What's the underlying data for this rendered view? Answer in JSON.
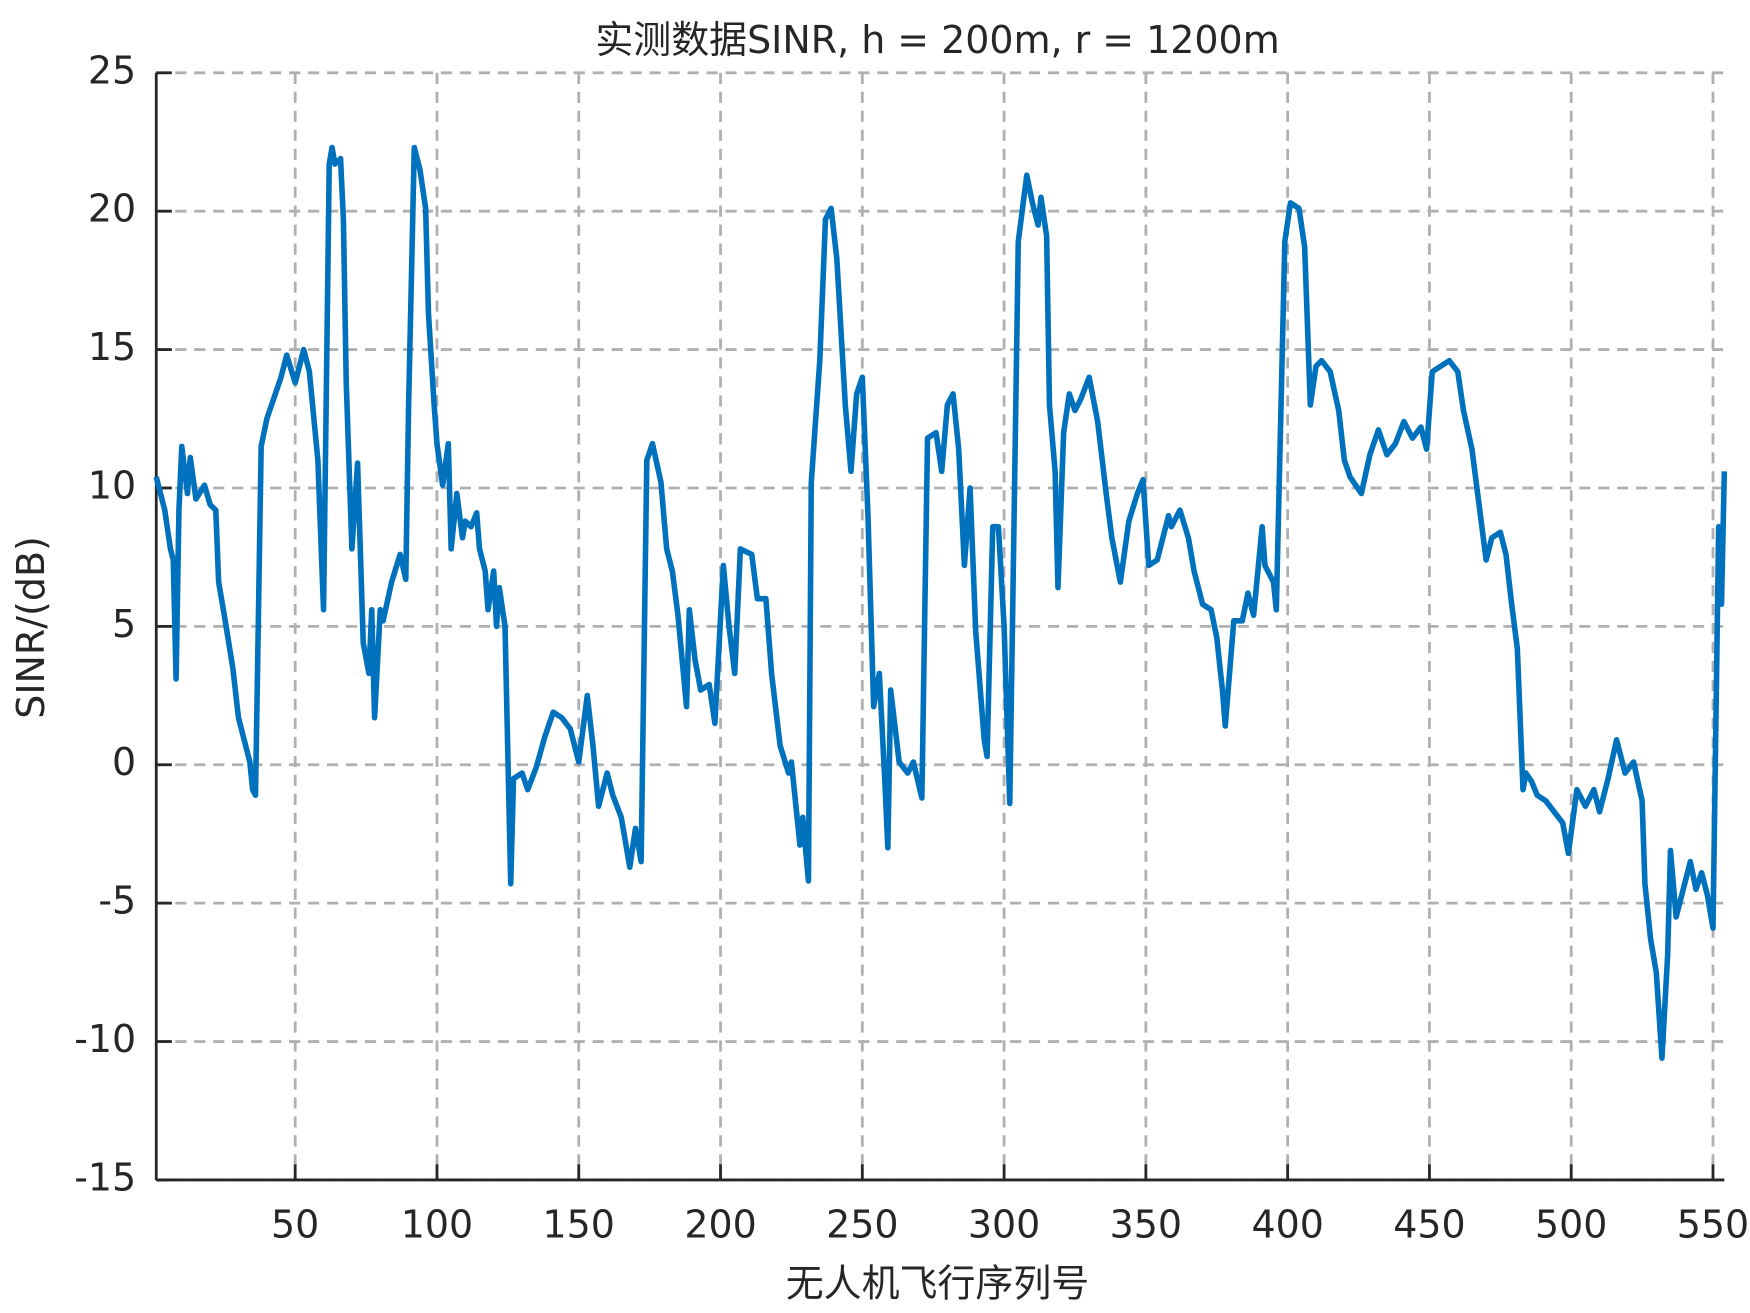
{
  "chart_data": {
    "type": "line",
    "title": "实测数据SINR, h = 200m, r = 1200m",
    "xlabel": "无人机飞行序列号",
    "ylabel": "SINR/(dB)",
    "xlim": [
      1,
      554
    ],
    "ylim": [
      -15,
      25
    ],
    "xticks": [
      50,
      100,
      150,
      200,
      250,
      300,
      350,
      400,
      450,
      500,
      550
    ],
    "yticks": [
      -15,
      -10,
      -5,
      0,
      5,
      10,
      15,
      20,
      25
    ],
    "grid": true,
    "x": [
      1,
      4,
      6,
      7,
      8,
      9,
      10,
      12,
      13,
      15,
      18,
      20,
      22,
      23,
      25,
      28,
      30,
      32,
      34,
      35,
      36,
      38,
      40,
      43,
      45,
      47,
      50,
      53,
      55,
      58,
      60,
      62,
      63,
      64,
      66,
      67,
      68,
      70,
      72,
      74,
      76,
      77,
      78,
      80,
      81,
      84,
      87,
      89,
      90,
      92,
      94,
      96,
      97,
      99,
      100,
      102,
      104,
      105,
      107,
      109,
      110,
      112,
      114,
      115,
      117,
      118,
      120,
      121,
      122,
      124,
      126,
      127,
      130,
      132,
      135,
      138,
      141,
      144,
      147,
      150,
      153,
      155,
      157,
      160,
      162,
      165,
      168,
      170,
      172,
      174,
      176,
      179,
      181,
      183,
      185,
      188,
      189,
      191,
      193,
      196,
      198,
      201,
      203,
      205,
      207,
      211,
      213,
      216,
      218,
      221,
      224,
      225,
      228,
      229,
      231,
      232,
      235,
      237,
      239,
      241,
      244,
      246,
      248,
      250,
      252,
      254,
      256,
      258,
      259,
      260,
      263,
      266,
      268,
      271,
      273,
      276,
      278,
      280,
      282,
      284,
      286,
      288,
      290,
      293,
      294,
      296,
      298,
      300,
      302,
      305,
      308,
      310,
      312,
      313,
      315,
      316,
      318,
      319,
      321,
      323,
      325,
      327,
      330,
      333,
      336,
      338,
      341,
      344,
      347,
      349,
      351,
      354,
      356,
      358,
      359,
      362,
      365,
      367,
      370,
      373,
      375,
      377,
      378,
      381,
      384,
      386,
      388,
      391,
      392,
      395,
      396,
      399,
      401,
      404,
      406,
      408,
      410,
      412,
      415,
      418,
      420,
      422,
      426,
      429,
      432,
      435,
      438,
      441,
      444,
      447,
      449,
      451,
      454,
      457,
      460,
      462,
      465,
      467,
      470,
      472,
      475,
      477,
      479,
      481,
      483,
      484,
      486,
      488,
      491,
      494,
      497,
      499,
      502,
      505,
      508,
      510,
      513,
      516,
      519,
      522,
      525,
      526,
      528,
      530,
      532,
      534,
      535,
      537,
      540,
      542,
      544,
      546,
      548,
      550,
      552,
      553,
      554
    ],
    "series": [
      {
        "name": "SINR",
        "color": "#0072BD",
        "values": [
          10.4,
          9.2,
          7.8,
          7.4,
          3.1,
          9.2,
          11.5,
          9.8,
          11.1,
          9.6,
          10.1,
          9.4,
          9.2,
          6.6,
          5.4,
          3.5,
          1.7,
          0.9,
          0.1,
          -0.9,
          -1.1,
          11.5,
          12.5,
          13.4,
          14,
          14.8,
          13.8,
          15,
          14.2,
          11,
          5.6,
          21.7,
          22.3,
          21.7,
          21.9,
          19.7,
          13.8,
          7.8,
          10.9,
          4.4,
          3.3,
          5.6,
          1.7,
          5.6,
          5.2,
          6.6,
          7.6,
          6.7,
          13,
          22.3,
          21.5,
          20.1,
          16.3,
          13,
          11.6,
          10.1,
          11.6,
          7.8,
          9.8,
          8.2,
          8.8,
          8.6,
          9.1,
          7.8,
          7,
          5.6,
          7,
          5,
          6.4,
          5,
          -4.3,
          -0.5,
          -0.3,
          -0.9,
          -0.1,
          1,
          1.9,
          1.7,
          1.3,
          0.1,
          2.5,
          0.7,
          -1.5,
          -0.3,
          -1.1,
          -1.9,
          -3.7,
          -2.3,
          -3.5,
          11,
          11.6,
          10.2,
          7.8,
          7,
          5.4,
          2.1,
          5.6,
          3.8,
          2.7,
          2.9,
          1.5,
          7.2,
          5,
          3.3,
          7.8,
          7.6,
          6,
          6,
          3.3,
          0.7,
          -0.3,
          0.1,
          -2.9,
          -1.9,
          -4.2,
          10.2,
          14.6,
          19.7,
          20.1,
          18.3,
          13,
          10.6,
          13.4,
          14,
          9,
          2.1,
          3.3,
          -0.7,
          -3,
          2.7,
          0.1,
          -0.3,
          0.1,
          -1.2,
          11.8,
          12,
          10.6,
          13,
          13.4,
          11.4,
          7.2,
          10,
          4.8,
          0.9,
          0.3,
          8.6,
          8.6,
          5,
          -1.4,
          18.9,
          21.3,
          20.3,
          19.5,
          20.5,
          19.1,
          13,
          10.6,
          6.4,
          12,
          13.4,
          12.8,
          13.2,
          14,
          12.4,
          9.8,
          8.2,
          6.6,
          8.8,
          9.8,
          10.3,
          7.2,
          7.4,
          8.2,
          9,
          8.6,
          9.2,
          8.2,
          7,
          5.8,
          5.6,
          4.6,
          2.7,
          1.4,
          5.2,
          5.2,
          6.2,
          5.4,
          8.6,
          7.2,
          6.6,
          5.6,
          18.9,
          20.3,
          20.1,
          18.7,
          13,
          14.4,
          14.6,
          14.2,
          12.8,
          11,
          10.4,
          9.8,
          11.2,
          12.1,
          11.2,
          11.6,
          12.4,
          11.8,
          12.2,
          11.4,
          14.2,
          14.4,
          14.6,
          14.2,
          12.8,
          11.4,
          9.8,
          7.4,
          8.2,
          8.4,
          7.6,
          5.8,
          4.2,
          -0.9,
          -0.3,
          -0.6,
          -1.1,
          -1.3,
          -1.7,
          -2.1,
          -3.2,
          -0.9,
          -1.5,
          -0.9,
          -1.7,
          -0.5,
          0.9,
          -0.3,
          0.1,
          -1.3,
          -4.3,
          -6.3,
          -7.5,
          -10.6,
          -6.9,
          -3.1,
          -5.5,
          -4.3,
          -3.5,
          -4.5,
          -3.9,
          -4.7,
          -5.9,
          8.6,
          5.8,
          10.6
        ]
      }
    ]
  }
}
